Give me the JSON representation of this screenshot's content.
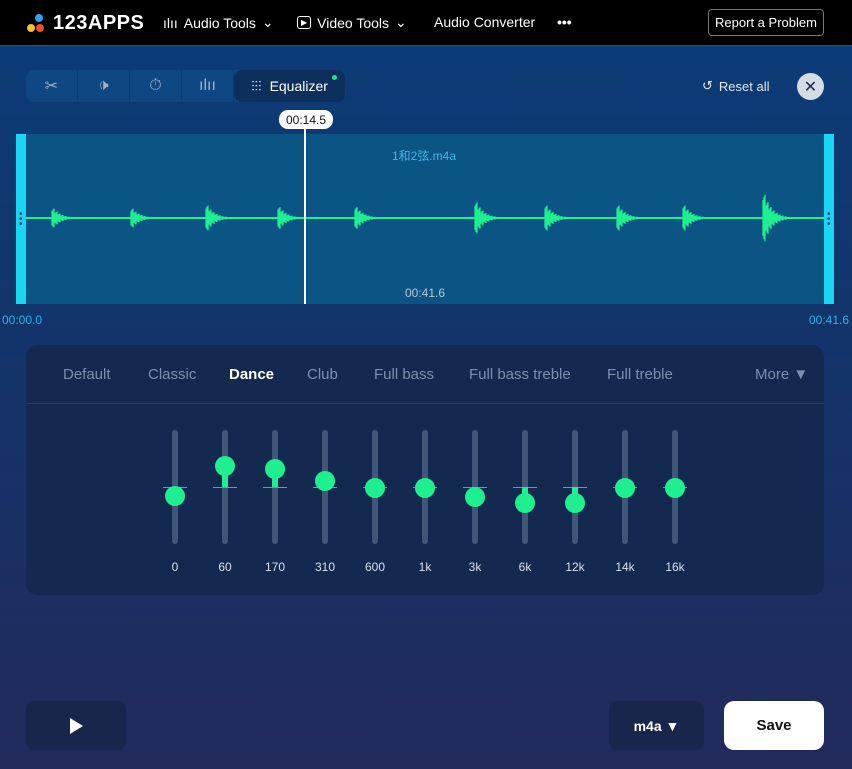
{
  "header": {
    "logo": "123APPS",
    "nav": [
      {
        "label": "Audio Tools",
        "icon": "waveform-icon"
      },
      {
        "label": "Video Tools",
        "icon": "play-box-icon"
      },
      {
        "label": "Audio Converter"
      }
    ],
    "more": "•••",
    "report": "Report a Problem"
  },
  "toolbar": {
    "tools": [
      "scissors-icon",
      "volume-icon",
      "speed-icon",
      "waveform-icon"
    ],
    "active_label": "Equalizer",
    "reset": "Reset all"
  },
  "editor": {
    "filename": "1和2弦.m4a",
    "cursor_time": "00:14.5",
    "duration_mid": "00:41.6",
    "start": "00:00.0",
    "end": "00:41.6",
    "accent": "#1ff08f"
  },
  "equalizer": {
    "presets": [
      "Default",
      "Classic",
      "Dance",
      "Club",
      "Full bass",
      "Full bass treble",
      "Full treble"
    ],
    "selected": "Dance",
    "more": "More ▼",
    "bands": [
      {
        "label": "0",
        "level": 0.42
      },
      {
        "label": "60",
        "level": 0.68
      },
      {
        "label": "170",
        "level": 0.66
      },
      {
        "label": "310",
        "level": 0.55
      },
      {
        "label": "600",
        "level": 0.49
      },
      {
        "label": "1k",
        "level": 0.49
      },
      {
        "label": "3k",
        "level": 0.41
      },
      {
        "label": "6k",
        "level": 0.36
      },
      {
        "label": "12k",
        "level": 0.36
      },
      {
        "label": "14k",
        "level": 0.49
      },
      {
        "label": "16k",
        "level": 0.49
      }
    ]
  },
  "footer": {
    "format": "m4a ▼",
    "save": "Save"
  }
}
